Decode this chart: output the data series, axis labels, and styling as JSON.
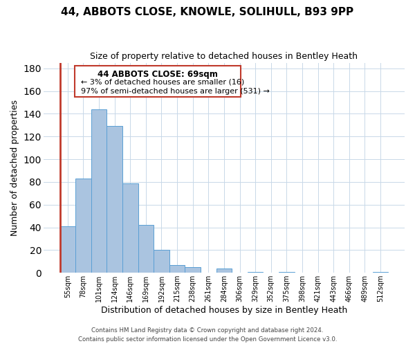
{
  "title": "44, ABBOTS CLOSE, KNOWLE, SOLIHULL, B93 9PP",
  "subtitle": "Size of property relative to detached houses in Bentley Heath",
  "xlabel": "Distribution of detached houses by size in Bentley Heath",
  "ylabel": "Number of detached properties",
  "footer_line1": "Contains HM Land Registry data © Crown copyright and database right 2024.",
  "footer_line2": "Contains public sector information licensed under the Open Government Licence v3.0.",
  "bin_labels": [
    "55sqm",
    "78sqm",
    "101sqm",
    "124sqm",
    "146sqm",
    "169sqm",
    "192sqm",
    "215sqm",
    "238sqm",
    "261sqm",
    "284sqm",
    "306sqm",
    "329sqm",
    "352sqm",
    "375sqm",
    "398sqm",
    "421sqm",
    "443sqm",
    "466sqm",
    "489sqm",
    "512sqm"
  ],
  "bar_values": [
    41,
    83,
    144,
    129,
    79,
    42,
    20,
    7,
    5,
    0,
    4,
    0,
    1,
    0,
    1,
    0,
    0,
    0,
    0,
    0,
    1
  ],
  "bar_color_normal": "#aac4e0",
  "bar_color_highlight": "#c0392b",
  "highlight_bin_index": 0,
  "annotation_text_line1": "44 ABBOTS CLOSE: 69sqm",
  "annotation_text_line2": "← 3% of detached houses are smaller (16)",
  "annotation_text_line3": "97% of semi-detached houses are larger (531) →",
  "annotation_box_color": "#c0392b",
  "ylim": [
    0,
    185
  ],
  "yticks": [
    0,
    20,
    40,
    60,
    80,
    100,
    120,
    140,
    160,
    180
  ],
  "background_color": "#ffffff",
  "grid_color": "#c8d8e8"
}
